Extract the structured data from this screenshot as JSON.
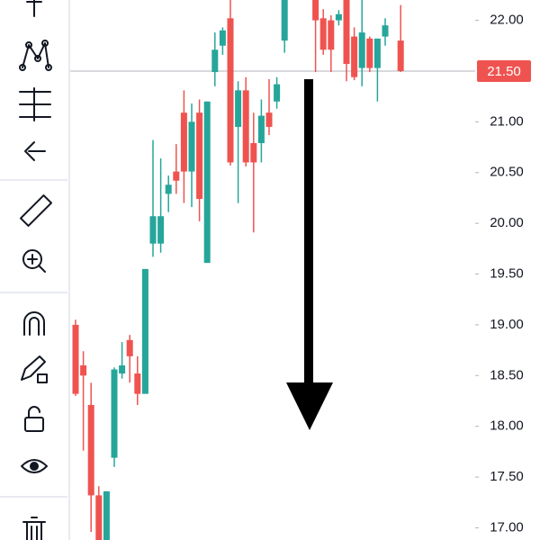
{
  "chart_data": {
    "type": "candlestick",
    "ylim": [
      16.88,
      22.2
    ],
    "yticks": [
      {
        "value": 22,
        "label": "22.00"
      },
      {
        "value": 21,
        "label": "21.00"
      },
      {
        "value": 20.5,
        "label": "20.50"
      },
      {
        "value": 20,
        "label": "20.00"
      },
      {
        "value": 19.5,
        "label": "19.50"
      },
      {
        "value": 19,
        "label": "19.00"
      },
      {
        "value": 18.5,
        "label": "18.50"
      },
      {
        "value": 18,
        "label": "18.00"
      },
      {
        "value": 17.5,
        "label": "17.50"
      },
      {
        "value": 17,
        "label": "17.00"
      }
    ],
    "last_price": 21.5,
    "last_price_label": "21.50",
    "up_color": "#26a69a",
    "down_color": "#ef5350",
    "open": [
      19.0,
      18.6,
      18.21,
      17.32,
      16.88,
      17.69,
      18.52,
      18.85,
      18.52,
      18.32,
      19.8,
      19.8,
      20.29,
      20.51,
      21.09,
      20.51,
      21.09,
      19.61,
      21.49,
      21.75,
      22.02,
      20.95,
      21.31,
      20.79,
      20.79,
      21.09,
      21.2,
      21.8,
      null,
      null,
      null,
      22.2,
      22.02,
      22.0,
      22.0,
      22.2,
      21.84,
      21.53,
      21.82,
      21.53,
      21.84,
      null,
      21.8
    ],
    "high": [
      19.05,
      18.74,
      18.43,
      17.41,
      17.36,
      18.58,
      18.83,
      18.9,
      18.69,
      19.55,
      20.82,
      20.64,
      20.47,
      20.78,
      21.31,
      21.18,
      21.22,
      21.2,
      21.88,
      21.93,
      22.2,
      21.4,
      21.44,
      21.09,
      21.22,
      21.42,
      21.44,
      22.2,
      null,
      null,
      null,
      22.2,
      22.11,
      22.05,
      22.1,
      22.2,
      21.93,
      22.2,
      21.84,
      21.82,
      22.02,
      null,
      22.15
    ],
    "low": [
      18.3,
      17.76,
      16.96,
      16.88,
      16.88,
      17.6,
      18.47,
      18.43,
      18.21,
      18.32,
      19.67,
      19.71,
      20.11,
      20.29,
      20.2,
      20.16,
      20.02,
      19.61,
      21.35,
      21.66,
      20.57,
      20.2,
      20.56,
      19.91,
      20.6,
      20.87,
      21.13,
      21.68,
      null,
      null,
      null,
      21.49,
      21.66,
      21.49,
      21.95,
      21.4,
      21.41,
      21.35,
      21.49,
      21.2,
      21.75,
      null,
      21.49
    ],
    "close": [
      18.32,
      18.5,
      17.32,
      16.88,
      17.36,
      18.56,
      18.6,
      18.69,
      18.32,
      19.55,
      20.07,
      20.07,
      20.38,
      20.42,
      20.51,
      21.0,
      20.24,
      21.2,
      21.71,
      21.9,
      20.6,
      21.31,
      20.6,
      20.6,
      21.06,
      20.95,
      21.37,
      22.2,
      null,
      null,
      null,
      22.0,
      21.71,
      21.71,
      22.06,
      21.57,
      21.44,
      21.88,
      21.53,
      21.82,
      21.95,
      null,
      21.5
    ]
  }
}
